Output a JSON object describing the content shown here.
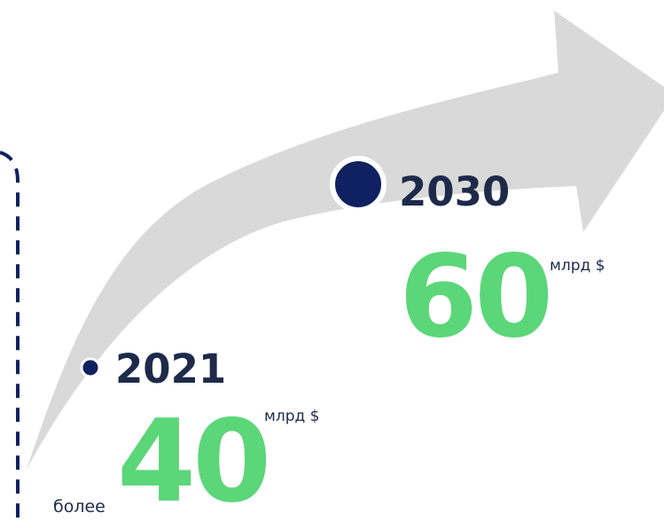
{
  "colors": {
    "arrow": "#d9d9d9",
    "dot": "#0f2160",
    "year_text": "#1e2a4a",
    "value_text": "#5bd678",
    "frame": "#0f2160"
  },
  "milestones": [
    {
      "year": "2021",
      "prefix": "более",
      "value": "40",
      "unit": "млрд $"
    },
    {
      "year": "2030",
      "value": "60",
      "unit": "млрд $"
    }
  ]
}
